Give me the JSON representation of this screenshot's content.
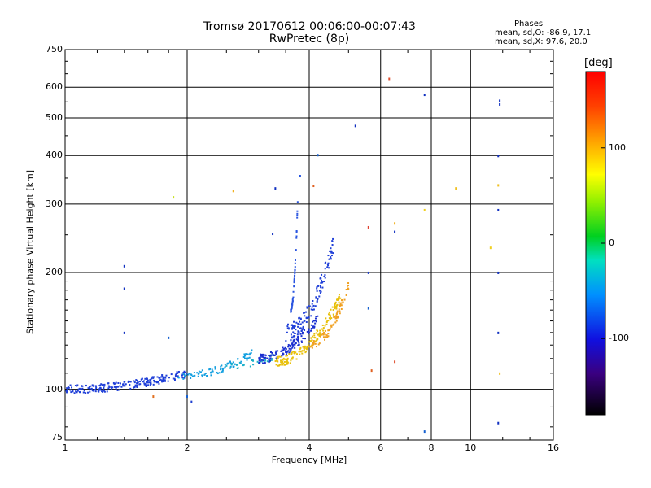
{
  "title_line1": "Tromsø 20170612 00:06:00-00:07:43",
  "title_line2": "RwPretec (8p)",
  "phases": {
    "heading": "Phases",
    "o_line": "mean, sd,O: -86.9, 17.1",
    "x_line": "mean, sd,X:  97.6, 20.0"
  },
  "colorbar": {
    "unit": "[deg]",
    "ticks": [
      {
        "label": "100",
        "value": 100
      },
      {
        "label": "0",
        "value": 0
      },
      {
        "label": "-100",
        "value": -100
      }
    ],
    "range": [
      -180,
      180
    ]
  },
  "chart_data": {
    "type": "scatter",
    "title": "Tromsø 20170612 00:06:00-00:07:43",
    "subtitle": "RwPretec (8p)",
    "xlabel": "Frequency [MHz]",
    "ylabel": "Stationary phase Virtual Height [km]",
    "xscale": "log",
    "yscale": "log",
    "xlim": [
      1,
      16
    ],
    "ylim": [
      74,
      750
    ],
    "x_ticks": [
      {
        "label": "1",
        "value": 1
      },
      {
        "label": "2",
        "value": 2
      },
      {
        "label": "4",
        "value": 4
      },
      {
        "label": "6",
        "value": 6
      },
      {
        "label": "8",
        "value": 8
      },
      {
        "label": "10",
        "value": 10
      },
      {
        "label": "16",
        "value": 16
      }
    ],
    "x_grid": [
      2,
      4,
      6,
      8,
      10
    ],
    "y_ticks": [
      {
        "label": "750",
        "value": 750
      },
      {
        "label": "600",
        "value": 600
      },
      {
        "label": "500",
        "value": 500
      },
      {
        "label": "400",
        "value": 400
      },
      {
        "label": "300",
        "value": 300
      },
      {
        "label": "200",
        "value": 200
      },
      {
        "label": "100",
        "value": 100
      },
      {
        "label": "75",
        "value": 75
      }
    ],
    "y_grid": [
      600,
      500,
      400,
      300,
      200,
      100
    ],
    "grid": true,
    "color_label": "[deg]",
    "traces": [
      {
        "x0": 1.0,
        "x1": 2.0,
        "y0": 100,
        "y1": 110,
        "n": 230,
        "color": "#1f3fd8",
        "spread": 0.025
      },
      {
        "x0": 1.9,
        "x1": 2.9,
        "y0": 108,
        "y1": 124,
        "n": 90,
        "color": "#15a0e0",
        "spread": 0.022
      },
      {
        "x0": 2.5,
        "x1": 3.3,
        "y0": 115,
        "y1": 122,
        "n": 35,
        "color": "#1bb0c8",
        "spread": 0.02
      },
      {
        "x0": 3.0,
        "x1": 4.2,
        "y0": 120,
        "y1": 152,
        "n": 140,
        "color": "#1a2fd0",
        "spread": 0.03
      },
      {
        "x0": 3.3,
        "x1": 4.8,
        "y0": 118,
        "y1": 175,
        "n": 160,
        "color": "#e8c00a",
        "spread": 0.03
      },
      {
        "x0": 4.0,
        "x1": 5.0,
        "y0": 130,
        "y1": 185,
        "n": 80,
        "color": "#f0a020",
        "spread": 0.03
      },
      {
        "x0": 3.5,
        "x1": 4.6,
        "y0": 140,
        "y1": 240,
        "n": 140,
        "color": "#2040d8",
        "spread": 0.05
      },
      {
        "x0": 3.6,
        "x1": 3.75,
        "y0": 160,
        "y1": 310,
        "n": 50,
        "color": "#2a55e0",
        "spread": 0.015
      }
    ],
    "points": [
      {
        "x": 1.4,
        "y": 208,
        "color": "#1030c0"
      },
      {
        "x": 1.4,
        "y": 182,
        "color": "#1030c0"
      },
      {
        "x": 1.4,
        "y": 140,
        "color": "#1030c0"
      },
      {
        "x": 1.65,
        "y": 96,
        "color": "#e07020"
      },
      {
        "x": 1.8,
        "y": 136,
        "color": "#1560d0"
      },
      {
        "x": 1.85,
        "y": 313,
        "color": "#c8e020"
      },
      {
        "x": 2.0,
        "y": 96,
        "color": "#1560d0"
      },
      {
        "x": 2.05,
        "y": 93,
        "color": "#2040d0"
      },
      {
        "x": 2.6,
        "y": 325,
        "color": "#f0b020"
      },
      {
        "x": 3.3,
        "y": 330,
        "color": "#1030c0"
      },
      {
        "x": 3.25,
        "y": 252,
        "color": "#1030c0"
      },
      {
        "x": 3.8,
        "y": 355,
        "color": "#2050e0"
      },
      {
        "x": 4.1,
        "y": 335,
        "color": "#e06020"
      },
      {
        "x": 4.2,
        "y": 402,
        "color": "#1560d0"
      },
      {
        "x": 5.2,
        "y": 478,
        "color": "#1030c0"
      },
      {
        "x": 5.6,
        "y": 262,
        "color": "#e04030"
      },
      {
        "x": 5.6,
        "y": 200,
        "color": "#2040d0"
      },
      {
        "x": 5.6,
        "y": 162,
        "color": "#1560d0"
      },
      {
        "x": 5.7,
        "y": 112,
        "color": "#e06020"
      },
      {
        "x": 6.3,
        "y": 632,
        "color": "#e05030"
      },
      {
        "x": 6.5,
        "y": 268,
        "color": "#f0b020"
      },
      {
        "x": 6.5,
        "y": 255,
        "color": "#1030c0"
      },
      {
        "x": 6.5,
        "y": 118,
        "color": "#e05030"
      },
      {
        "x": 7.7,
        "y": 575,
        "color": "#1030c0"
      },
      {
        "x": 7.7,
        "y": 290,
        "color": "#f0d020"
      },
      {
        "x": 7.7,
        "y": 78,
        "color": "#1560d0"
      },
      {
        "x": 9.2,
        "y": 330,
        "color": "#f0c020"
      },
      {
        "x": 11.2,
        "y": 232,
        "color": "#f0d020"
      },
      {
        "x": 11.8,
        "y": 555,
        "color": "#1030c0"
      },
      {
        "x": 11.8,
        "y": 543,
        "color": "#1030c0"
      },
      {
        "x": 11.7,
        "y": 400,
        "color": "#1030c0"
      },
      {
        "x": 11.7,
        "y": 336,
        "color": "#f0c020"
      },
      {
        "x": 11.7,
        "y": 290,
        "color": "#1030c0"
      },
      {
        "x": 11.7,
        "y": 200,
        "color": "#1030c0"
      },
      {
        "x": 11.7,
        "y": 140,
        "color": "#1030c0"
      },
      {
        "x": 11.8,
        "y": 110,
        "color": "#f0c020"
      },
      {
        "x": 11.7,
        "y": 82,
        "color": "#1030c0"
      }
    ]
  }
}
